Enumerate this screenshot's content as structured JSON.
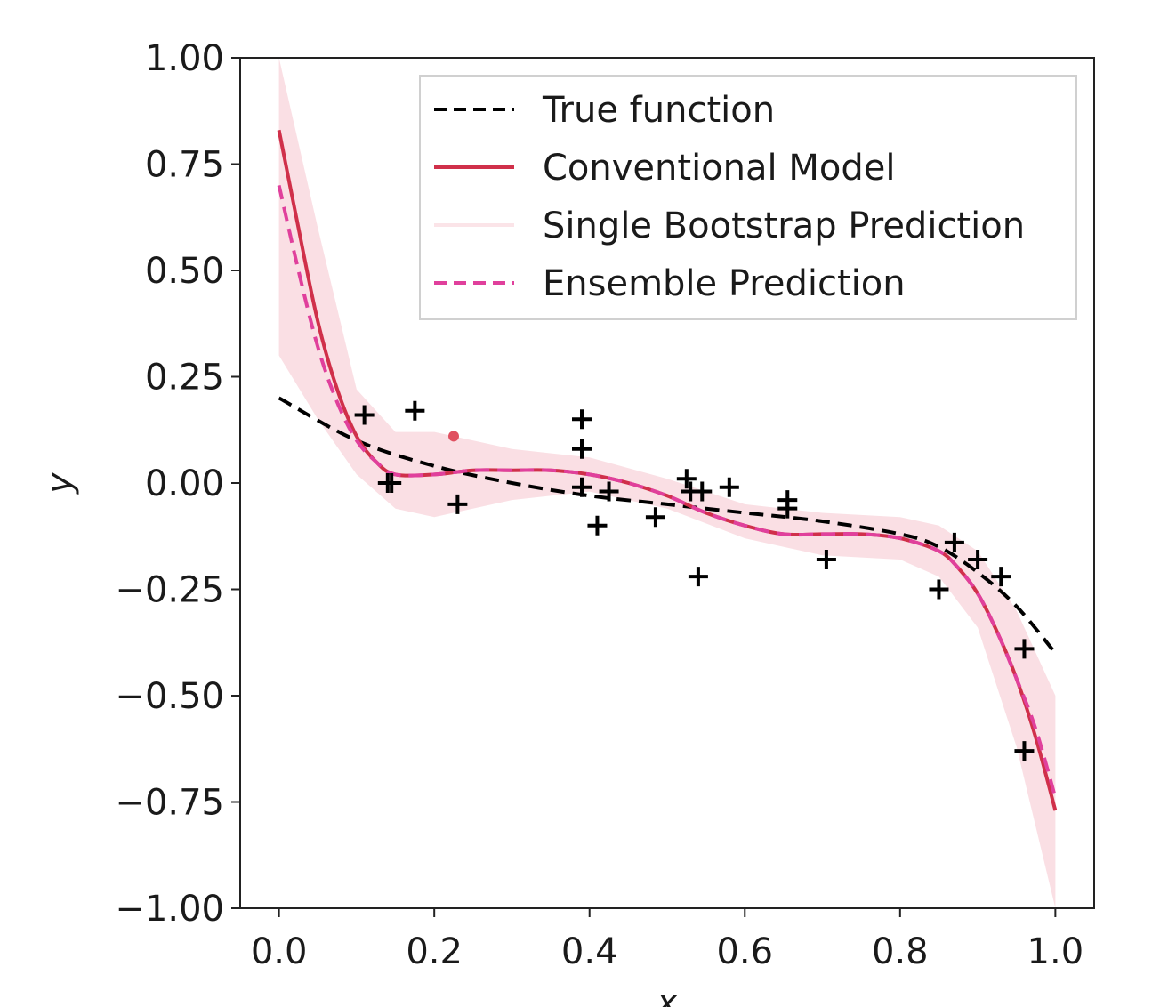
{
  "chart_data": {
    "type": "line",
    "title": "",
    "xlabel": "x",
    "ylabel": "y",
    "xlim": [
      -0.05,
      1.05
    ],
    "ylim": [
      -1.0,
      1.0
    ],
    "grid": false,
    "legend_placement": "top-right",
    "x_ticks": [
      "0.0",
      "0.2",
      "0.4",
      "0.6",
      "0.8",
      "1.0"
    ],
    "x_tick_values": [
      0.0,
      0.2,
      0.4,
      0.6,
      0.8,
      1.0
    ],
    "y_ticks": [
      "1.00",
      "0.75",
      "0.50",
      "0.25",
      "0.00",
      "−0.25",
      "−0.50",
      "−0.75",
      "−1.00"
    ],
    "y_tick_values": [
      1.0,
      0.75,
      0.5,
      0.25,
      0.0,
      -0.25,
      -0.5,
      -0.75,
      -1.0
    ],
    "series": [
      {
        "name": "True function",
        "style": "dashed",
        "color": "#000000",
        "x": [
          0.0,
          0.1,
          0.2,
          0.3,
          0.4,
          0.5,
          0.6,
          0.7,
          0.8,
          0.85,
          0.9,
          0.95,
          1.0
        ],
        "y": [
          0.2,
          0.1,
          0.04,
          0.0,
          -0.03,
          -0.05,
          -0.07,
          -0.09,
          -0.12,
          -0.15,
          -0.21,
          -0.29,
          -0.4
        ]
      },
      {
        "name": "Conventional Model",
        "style": "solid",
        "color": "#d0304a",
        "x": [
          0.0,
          0.025,
          0.05,
          0.075,
          0.1,
          0.125,
          0.15,
          0.2,
          0.25,
          0.3,
          0.35,
          0.4,
          0.45,
          0.5,
          0.55,
          0.6,
          0.65,
          0.7,
          0.75,
          0.8,
          0.85,
          0.875,
          0.9,
          0.925,
          0.95,
          0.975,
          1.0
        ],
        "y": [
          0.83,
          0.6,
          0.38,
          0.22,
          0.11,
          0.05,
          0.02,
          0.02,
          0.03,
          0.03,
          0.03,
          0.02,
          0.0,
          -0.03,
          -0.07,
          -0.1,
          -0.12,
          -0.12,
          -0.12,
          -0.13,
          -0.16,
          -0.2,
          -0.26,
          -0.35,
          -0.46,
          -0.6,
          -0.77
        ]
      },
      {
        "name": "Single Bootstrap Prediction",
        "style": "band",
        "color": "#f4b7c4",
        "x": [
          0.0,
          0.05,
          0.1,
          0.15,
          0.2,
          0.3,
          0.4,
          0.5,
          0.6,
          0.7,
          0.8,
          0.85,
          0.9,
          0.95,
          1.0
        ],
        "y_upper": [
          1.0,
          0.6,
          0.22,
          0.12,
          0.12,
          0.08,
          0.06,
          0.01,
          -0.05,
          -0.07,
          -0.08,
          -0.1,
          -0.16,
          -0.3,
          -0.5
        ],
        "y_lower": [
          0.3,
          0.15,
          0.02,
          -0.06,
          -0.08,
          -0.04,
          -0.02,
          -0.06,
          -0.13,
          -0.17,
          -0.18,
          -0.22,
          -0.34,
          -0.62,
          -1.0
        ]
      },
      {
        "name": "Ensemble Prediction",
        "style": "dashed",
        "color": "#e0409c",
        "x": [
          0.0,
          0.025,
          0.05,
          0.075,
          0.1,
          0.125,
          0.15,
          0.2,
          0.25,
          0.3,
          0.35,
          0.4,
          0.45,
          0.5,
          0.55,
          0.6,
          0.65,
          0.7,
          0.75,
          0.8,
          0.85,
          0.875,
          0.9,
          0.925,
          0.95,
          0.975,
          1.0
        ],
        "y": [
          0.7,
          0.5,
          0.32,
          0.19,
          0.1,
          0.05,
          0.02,
          0.02,
          0.03,
          0.03,
          0.03,
          0.02,
          0.0,
          -0.03,
          -0.07,
          -0.1,
          -0.12,
          -0.12,
          -0.12,
          -0.13,
          -0.16,
          -0.2,
          -0.26,
          -0.35,
          -0.46,
          -0.58,
          -0.74
        ]
      }
    ],
    "points": {
      "marker": "plus",
      "color": "#000000",
      "x": [
        0.11,
        0.14,
        0.145,
        0.175,
        0.23,
        0.39,
        0.39,
        0.39,
        0.425,
        0.41,
        0.485,
        0.525,
        0.53,
        0.545,
        0.54,
        0.58,
        0.655,
        0.655,
        0.705,
        0.85,
        0.87,
        0.9,
        0.93,
        0.96,
        0.96
      ],
      "y": [
        0.16,
        0.0,
        0.0,
        0.17,
        -0.05,
        0.15,
        0.08,
        -0.01,
        -0.02,
        -0.1,
        -0.08,
        0.01,
        -0.02,
        -0.02,
        -0.22,
        -0.01,
        -0.04,
        -0.06,
        -0.18,
        -0.25,
        -0.14,
        -0.18,
        -0.22,
        -0.39,
        -0.63
      ]
    },
    "highlight_point": {
      "x": 0.225,
      "y": 0.11,
      "color": "#e05060"
    }
  }
}
